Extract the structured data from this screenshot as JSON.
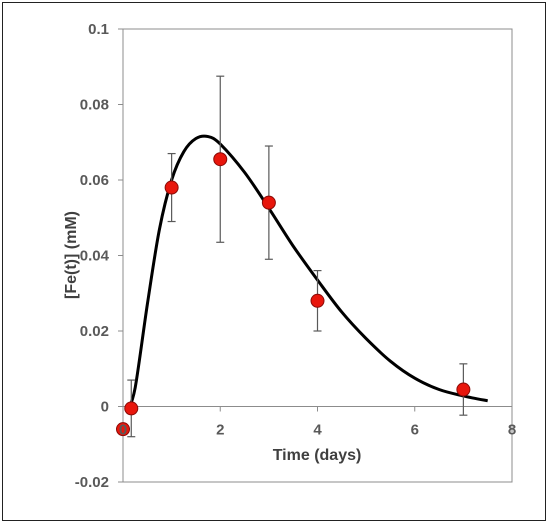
{
  "chart_data": {
    "type": "scatter",
    "title": "",
    "xlabel": "Time (days)",
    "ylabel": "[Fe(t)] (mM)",
    "xlim": [
      0,
      8
    ],
    "ylim": [
      -0.02,
      0.1
    ],
    "x_ticks": [
      "0",
      "2",
      "4",
      "6",
      "8"
    ],
    "y_ticks": [
      "-0.02",
      "0",
      "0.02",
      "0.04",
      "0.06",
      "0.08",
      "0.1"
    ],
    "grid": false,
    "legend": "none",
    "series": [
      {
        "marker_color": "#e8160c",
        "points": [
          {
            "x": 0.0,
            "y": -0.006,
            "err": 0.0
          },
          {
            "x": 0.17,
            "y": -0.0005,
            "err": 0.0075
          },
          {
            "x": 1.0,
            "y": 0.058,
            "err": 0.009
          },
          {
            "x": 2.0,
            "y": 0.0655,
            "err": 0.022
          },
          {
            "x": 3.0,
            "y": 0.054,
            "err": 0.015
          },
          {
            "x": 4.0,
            "y": 0.028,
            "err": 0.008
          },
          {
            "x": 7.0,
            "y": 0.0045,
            "err": 0.0068
          }
        ]
      }
    ],
    "fit_curve": {
      "color": "#000000",
      "points": [
        [
          0.1,
          -0.001
        ],
        [
          0.25,
          0.005
        ],
        [
          0.5,
          0.027
        ],
        [
          0.75,
          0.047
        ],
        [
          1.0,
          0.06
        ],
        [
          1.25,
          0.0675
        ],
        [
          1.5,
          0.071
        ],
        [
          1.75,
          0.0715
        ],
        [
          2.0,
          0.0695
        ],
        [
          2.5,
          0.062
        ],
        [
          3.0,
          0.0525
        ],
        [
          3.5,
          0.0425
        ],
        [
          4.0,
          0.0335
        ],
        [
          4.5,
          0.025
        ],
        [
          5.0,
          0.018
        ],
        [
          5.5,
          0.012
        ],
        [
          6.0,
          0.0075
        ],
        [
          6.5,
          0.0045
        ],
        [
          7.0,
          0.0028
        ],
        [
          7.5,
          0.0015
        ]
      ]
    }
  }
}
